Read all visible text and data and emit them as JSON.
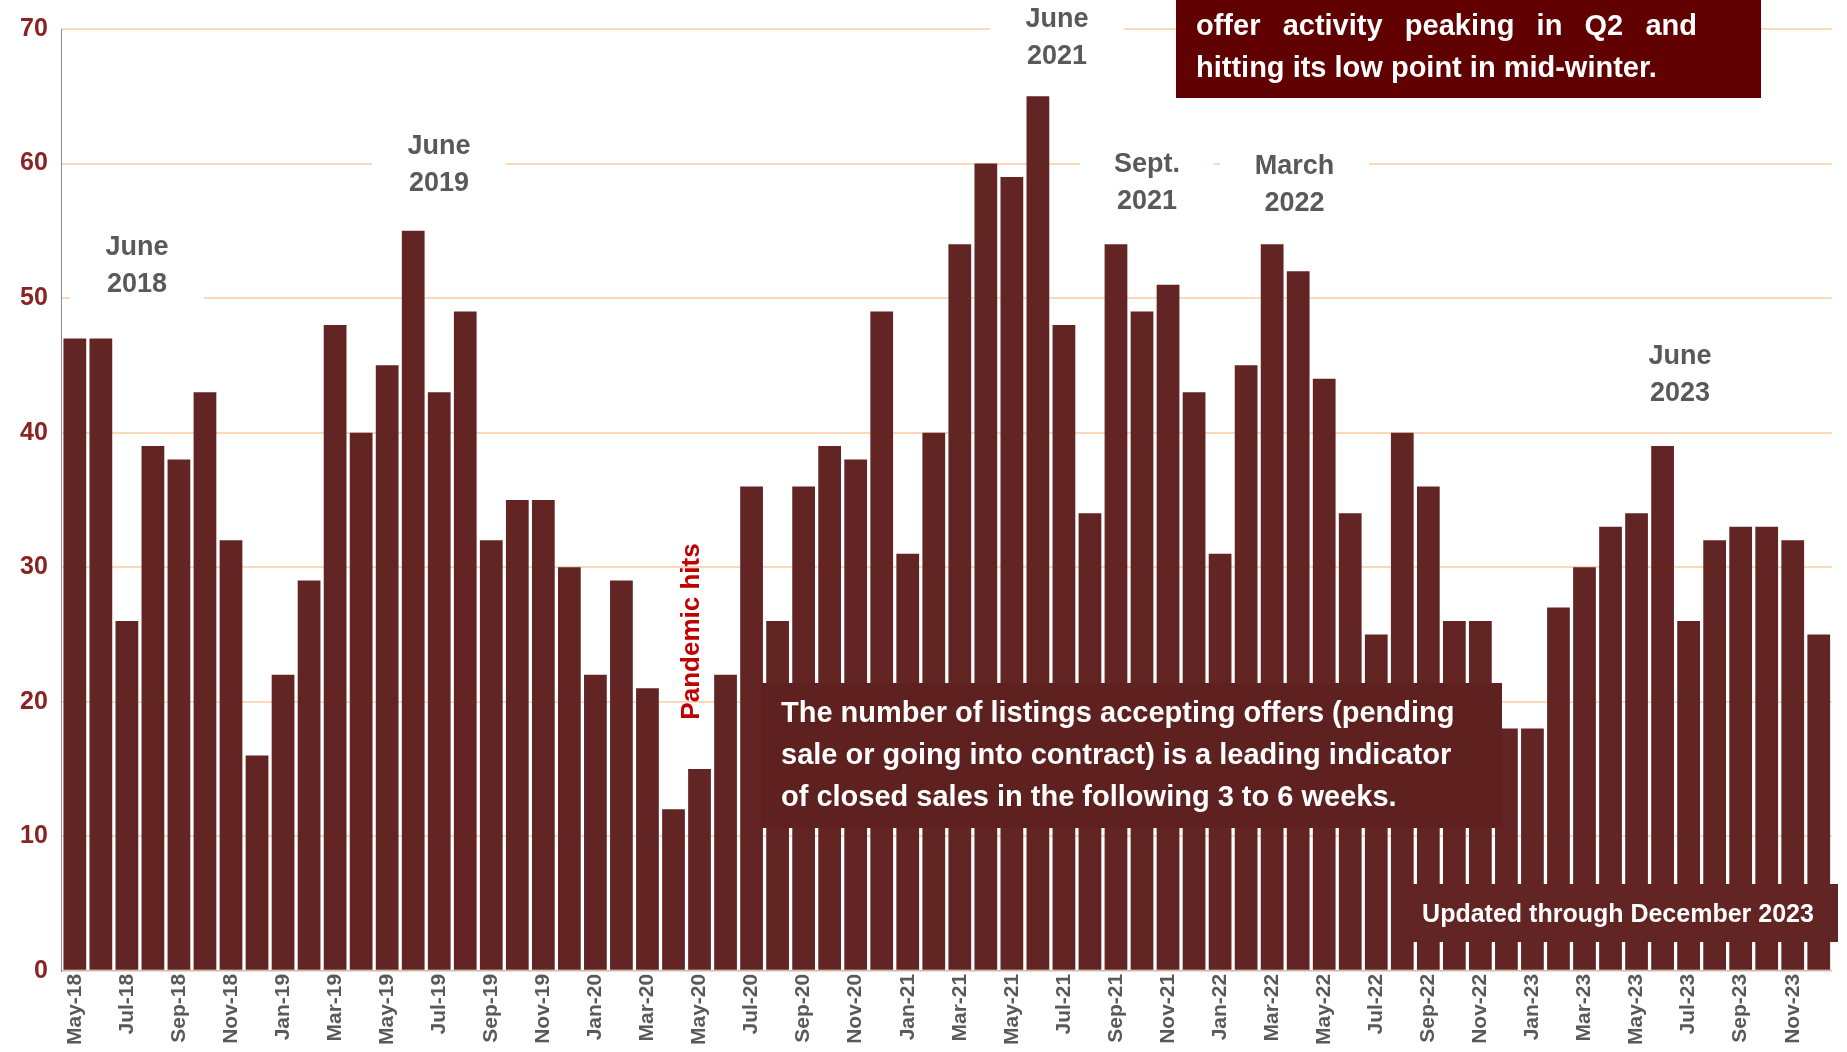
{
  "chart_data": {
    "type": "bar",
    "categories": [
      "May-18",
      null,
      "Jul-18",
      null,
      "Sep-18",
      null,
      "Nov-18",
      null,
      "Jan-19",
      null,
      "Mar-19",
      null,
      "May-19",
      null,
      "Jul-19",
      null,
      "Sep-19",
      null,
      "Nov-19",
      null,
      "Jan-20",
      null,
      "Mar-20",
      null,
      "May-20",
      null,
      "Jul-20",
      null,
      "Sep-20",
      null,
      "Nov-20",
      null,
      "Jan-21",
      null,
      "Mar-21",
      null,
      "May-21",
      null,
      "Jul-21",
      null,
      "Sep-21",
      null,
      "Nov-21",
      null,
      "Jan-22",
      null,
      "Mar-22",
      null,
      "May-22",
      null,
      "Jul-22",
      null,
      "Sep-22",
      null,
      "Nov-22",
      null,
      "Jan-23",
      null,
      "Mar-23",
      null,
      "May-23",
      null,
      "Jul-23",
      null,
      "Sep-23",
      null,
      "Nov-23",
      null
    ],
    "values": [
      47,
      47,
      26,
      39,
      38,
      43,
      32,
      16,
      22,
      29,
      48,
      40,
      45,
      55,
      43,
      49,
      32,
      35,
      35,
      30,
      22,
      29,
      21,
      12,
      15,
      22,
      36,
      26,
      36,
      39,
      38,
      49,
      31,
      40,
      54,
      60,
      59,
      65,
      48,
      34,
      54,
      49,
      51,
      43,
      31,
      45,
      54,
      52,
      44,
      34,
      25,
      40,
      36,
      26,
      26,
      18,
      18,
      27,
      30,
      33,
      34,
      39,
      26,
      32,
      33,
      33,
      32,
      25
    ],
    "color": "#632523",
    "ylim": [
      0,
      70
    ],
    "yticks": [
      0,
      10,
      20,
      30,
      40,
      50,
      60,
      70
    ],
    "grid": "y",
    "legend": false,
    "annotations": [
      "June\n2018",
      "June\n2019",
      "June\n2021",
      "Sept.\n2021",
      "March\n2022",
      "June\n2023",
      "Pandemic hits",
      "offer activity peaking in Q2 and hitting its low point in mid-winter.",
      "The number of listings accepting offers (pending sale or going into contract) is a leading indicator of closed sales in the following 3 to 6 weeks.",
      "Updated through December 2023"
    ]
  }
}
